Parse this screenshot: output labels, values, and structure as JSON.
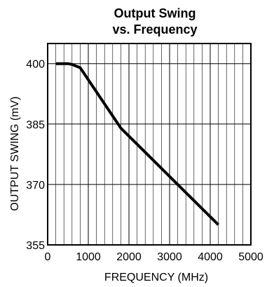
{
  "chart_data": {
    "type": "line",
    "title_lines": [
      "Output Swing",
      "vs. Frequency"
    ],
    "xlabel": "FREQUENCY (MHz)",
    "ylabel": "OUTPUT SWING (mV)",
    "xlim": [
      0,
      5000
    ],
    "ylim": [
      355,
      405
    ],
    "x_ticks": [
      0,
      1000,
      2000,
      3000,
      4000,
      5000
    ],
    "x_tick_labels": [
      "0",
      "1000",
      "2000",
      "3000",
      "4000",
      "5000"
    ],
    "y_ticks": [
      355,
      370,
      385,
      400
    ],
    "y_tick_labels": [
      "355",
      "370",
      "385",
      "400"
    ],
    "x_minor_step": 200,
    "grid": true,
    "series": [
      {
        "x": [
          200,
          500,
          600,
          800,
          1800,
          4200
        ],
        "y": [
          400,
          400,
          399.8,
          399,
          384,
          360
        ],
        "color": "#000000"
      }
    ]
  }
}
